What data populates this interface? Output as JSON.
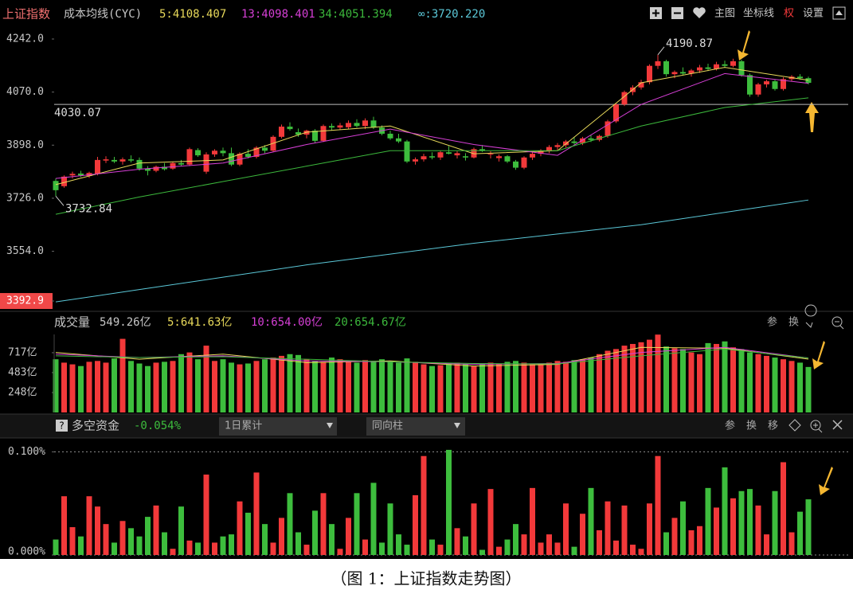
{
  "toolbar": {
    "items": [
      "主图",
      "坐标线",
      "权",
      "设置"
    ]
  },
  "chart_data": [
    {
      "type": "candlestick",
      "title": "上证指数",
      "subtitle": "成本均线(CYC)",
      "up_color": "#f2393a",
      "down_color": "#3dbd3d",
      "ylim": [
        3362,
        4291
      ],
      "yticks": [
        {
          "value": 3392.9,
          "label": "3392.9"
        },
        {
          "value": 3554,
          "label": "3554.0"
        },
        {
          "value": 3726,
          "label": "3726.0"
        },
        {
          "value": 3898,
          "label": "3898.0"
        },
        {
          "value": 4070,
          "label": "4070.0"
        },
        {
          "value": 4242,
          "label": "4242.0"
        }
      ],
      "hline": 4030.07,
      "ohlc": [
        [
          3782,
          3790,
          3732.84,
          3752
        ],
        [
          3765,
          3800,
          3760,
          3796
        ],
        [
          3800,
          3812,
          3790,
          3805
        ],
        [
          3806,
          3815,
          3795,
          3800
        ],
        [
          3798,
          3812,
          3792,
          3808
        ],
        [
          3805,
          3860,
          3800,
          3850
        ],
        [
          3848,
          3862,
          3840,
          3852
        ],
        [
          3850,
          3860,
          3840,
          3845
        ],
        [
          3845,
          3858,
          3835,
          3852
        ],
        [
          3852,
          3865,
          3842,
          3848
        ],
        [
          3850,
          3858,
          3815,
          3822
        ],
        [
          3822,
          3830,
          3800,
          3815
        ],
        [
          3815,
          3832,
          3810,
          3828
        ],
        [
          3828,
          3840,
          3816,
          3820
        ],
        [
          3822,
          3845,
          3818,
          3840
        ],
        [
          3840,
          3850,
          3830,
          3835
        ],
        [
          3835,
          3890,
          3830,
          3885
        ],
        [
          3882,
          3888,
          3860,
          3865
        ],
        [
          3812,
          3875,
          3805,
          3868
        ],
        [
          3868,
          3885,
          3860,
          3880
        ],
        [
          3880,
          3890,
          3862,
          3872
        ],
        [
          3872,
          3890,
          3830,
          3835
        ],
        [
          3835,
          3875,
          3830,
          3870
        ],
        [
          3870,
          3885,
          3855,
          3860
        ],
        [
          3860,
          3895,
          3855,
          3890
        ],
        [
          3890,
          3898,
          3872,
          3880
        ],
        [
          3880,
          3930,
          3876,
          3925
        ],
        [
          3925,
          3965,
          3920,
          3958
        ],
        [
          3958,
          3972,
          3945,
          3950
        ],
        [
          3940,
          3952,
          3925,
          3932
        ],
        [
          3932,
          3948,
          3920,
          3945
        ],
        [
          3945,
          3950,
          3905,
          3912
        ],
        [
          3912,
          3965,
          3908,
          3960
        ],
        [
          3960,
          3968,
          3945,
          3955
        ],
        [
          3955,
          3970,
          3948,
          3962
        ],
        [
          3956,
          3978,
          3950,
          3970
        ],
        [
          3970,
          3982,
          3955,
          3960
        ],
        [
          3960,
          3985,
          3950,
          3978
        ],
        [
          3978,
          3990,
          3950,
          3955
        ],
        [
          3955,
          3962,
          3930,
          3935
        ],
        [
          3935,
          3945,
          3915,
          3920
        ],
        [
          3920,
          3935,
          3905,
          3910
        ],
        [
          3910,
          3915,
          3840,
          3845
        ],
        [
          3845,
          3858,
          3835,
          3852
        ],
        [
          3852,
          3870,
          3845,
          3862
        ],
        [
          3862,
          3875,
          3852,
          3858
        ],
        [
          3858,
          3880,
          3850,
          3875
        ],
        [
          3875,
          3895,
          3868,
          3870
        ],
        [
          3865,
          3878,
          3855,
          3872
        ],
        [
          3862,
          3872,
          3848,
          3858
        ],
        [
          3858,
          3890,
          3855,
          3885
        ],
        [
          3885,
          3898,
          3876,
          3880
        ],
        [
          3868,
          3878,
          3855,
          3870
        ],
        [
          3856,
          3868,
          3845,
          3862
        ],
        [
          3862,
          3866,
          3840,
          3845
        ],
        [
          3845,
          3850,
          3818,
          3825
        ],
        [
          3825,
          3862,
          3820,
          3858
        ],
        [
          3858,
          3875,
          3850,
          3870
        ],
        [
          3870,
          3885,
          3862,
          3880
        ],
        [
          3880,
          3898,
          3872,
          3892
        ],
        [
          3892,
          3905,
          3882,
          3898
        ],
        [
          3898,
          3915,
          3890,
          3910
        ],
        [
          3910,
          3925,
          3900,
          3905
        ],
        [
          3905,
          3925,
          3898,
          3920
        ],
        [
          3920,
          3930,
          3908,
          3915
        ],
        [
          3915,
          3932,
          3910,
          3928
        ],
        [
          3928,
          3980,
          3922,
          3975
        ],
        [
          3975,
          4035,
          3970,
          4030
        ],
        [
          4030,
          4075,
          4025,
          4070
        ],
        [
          4070,
          4092,
          4060,
          4085
        ],
        [
          4085,
          4110,
          4078,
          4102
        ],
        [
          4102,
          4160,
          4095,
          4155
        ],
        [
          4155,
          4190.87,
          4145,
          4170
        ],
        [
          4170,
          4175,
          4120,
          4128
        ],
        [
          4128,
          4140,
          4115,
          4135
        ],
        [
          4135,
          4150,
          4125,
          4130
        ],
        [
          4130,
          4145,
          4120,
          4140
        ],
        [
          4140,
          4158,
          4132,
          4150
        ],
        [
          4150,
          4162,
          4138,
          4145
        ],
        [
          4145,
          4168,
          4140,
          4160
        ],
        [
          4160,
          4172,
          4148,
          4155
        ],
        [
          4155,
          4178,
          4150,
          4170
        ],
        [
          4170,
          4175,
          4120,
          4125
        ],
        [
          4125,
          4130,
          4055,
          4062
        ],
        [
          4062,
          4100,
          4055,
          4095
        ],
        [
          4095,
          4110,
          4085,
          4105
        ],
        [
          4105,
          4110,
          4075,
          4080
        ],
        [
          4080,
          4118,
          4075,
          4112
        ],
        [
          4112,
          4125,
          4105,
          4120
        ],
        [
          4120,
          4128,
          4110,
          4115
        ],
        [
          4115,
          4120,
          4095,
          4100
        ]
      ],
      "series": [
        {
          "name": "5:4108.407",
          "color": "#e8d95a",
          "x": [
            0,
            10,
            20,
            30,
            40,
            50,
            60,
            70,
            80,
            90
          ],
          "values": [
            3770,
            3840,
            3850,
            3940,
            3960,
            3870,
            3880,
            4100,
            4150,
            4108.407
          ]
        },
        {
          "name": "13:4098.401",
          "color": "#d63fd6",
          "x": [
            0,
            10,
            20,
            30,
            40,
            50,
            60,
            70,
            80,
            90
          ],
          "values": [
            3790,
            3820,
            3840,
            3900,
            3950,
            3900,
            3865,
            4030,
            4130,
            4098.401
          ]
        },
        {
          "name": "34:4051.394",
          "color": "#3cb83c",
          "x": [
            0,
            10,
            20,
            30,
            40,
            50,
            60,
            70,
            80,
            90
          ],
          "values": [
            3674,
            3730,
            3780,
            3830,
            3880,
            3880,
            3880,
            3960,
            4020,
            4051.394
          ]
        },
        {
          "name": "∞:3720.220",
          "color": "#5bc8d8",
          "x": [
            0,
            10,
            20,
            30,
            40,
            50,
            60,
            70,
            80,
            90
          ],
          "values": [
            3390,
            3430,
            3470,
            3510,
            3545,
            3580,
            3610,
            3640,
            3680,
            3720.22
          ]
        }
      ]
    },
    {
      "type": "bar",
      "title": "成交量",
      "subtitle": "549.26亿",
      "tools": [
        "参",
        "换"
      ],
      "ylim": [
        14,
        932
      ],
      "yticks": [
        {
          "value": 248,
          "label": "248亿"
        },
        {
          "value": 483,
          "label": "483亿"
        },
        {
          "value": 717,
          "label": "717亿"
        }
      ],
      "values": [
        640,
        600,
        580,
        560,
        610,
        620,
        600,
        650,
        880,
        620,
        590,
        560,
        600,
        610,
        620,
        700,
        720,
        640,
        800,
        620,
        640,
        600,
        580,
        590,
        620,
        640,
        660,
        680,
        700,
        690,
        640,
        620,
        610,
        660,
        640,
        620,
        600,
        630,
        610,
        640,
        620,
        600,
        650,
        610,
        580,
        560,
        570,
        590,
        600,
        580,
        560,
        580,
        600,
        590,
        610,
        620,
        600,
        580,
        590,
        600,
        620,
        610,
        630,
        640,
        660,
        700,
        740,
        760,
        800,
        820,
        840,
        870,
        930,
        790,
        770,
        760,
        720,
        700,
        830,
        820,
        850,
        780,
        760,
        720,
        700,
        680,
        660,
        640,
        620,
        600,
        549.26
      ],
      "series": [
        {
          "name": "5:641.63亿",
          "color": "#e8d95a",
          "x": [
            0,
            10,
            20,
            30,
            40,
            50,
            60,
            70,
            80,
            90
          ],
          "values": [
            720,
            640,
            700,
            600,
            620,
            560,
            580,
            780,
            770,
            641.63
          ]
        },
        {
          "name": "10:654.00亿",
          "color": "#d63fd6",
          "x": [
            0,
            10,
            20,
            30,
            40,
            50,
            60,
            70,
            80,
            90
          ],
          "values": [
            700,
            660,
            680,
            620,
            610,
            580,
            590,
            720,
            780,
            654
          ]
        },
        {
          "name": "20:654.67亿",
          "color": "#3cb83c",
          "x": [
            0,
            10,
            20,
            30,
            40,
            50,
            60,
            70,
            80,
            90
          ],
          "values": [
            680,
            660,
            670,
            640,
            610,
            590,
            585,
            680,
            760,
            654.67
          ]
        }
      ]
    },
    {
      "type": "bar",
      "title": "多空资金",
      "subtitle": "-0.054%",
      "controls": [
        "1日累计",
        "同向柱"
      ],
      "tools": [
        "参",
        "换",
        "移"
      ],
      "ylim": [
        0,
        0.112
      ],
      "grid": true,
      "yticks": [
        {
          "value": 0,
          "label": "0.000%"
        },
        {
          "value": 0.1,
          "label": "0.100%"
        }
      ],
      "values": [
        0.015,
        0.057,
        0.027,
        0.018,
        0.057,
        0.047,
        0.03,
        0.012,
        0.033,
        0.026,
        0.018,
        0.037,
        0.048,
        0.022,
        0.006,
        0.047,
        0.014,
        0.012,
        0.078,
        0.012,
        0.018,
        0.02,
        0.052,
        0.041,
        0.08,
        0.03,
        0.012,
        0.036,
        0.06,
        0.022,
        0.01,
        0.043,
        0.06,
        0.03,
        0.006,
        0.036,
        0.06,
        0.015,
        0.07,
        0.012,
        0.05,
        0.02,
        0.01,
        0.058,
        0.096,
        0.015,
        0.01,
        0.102,
        0.026,
        0.018,
        0.05,
        0.005,
        0.064,
        0.008,
        0.015,
        0.03,
        0.02,
        0.065,
        0.012,
        0.02,
        0.012,
        0.05,
        0.008,
        0.04,
        0.065,
        0.024,
        0.052,
        0.014,
        0.048,
        0.01,
        0.006,
        0.05,
        0.096,
        0.022,
        0.036,
        0.052,
        0.024,
        0.028,
        0.065,
        0.046,
        0.085,
        0.055,
        0.062,
        0.064,
        0.048,
        0.02,
        0.062,
        0.09,
        0.022,
        0.042,
        0.054
      ]
    }
  ],
  "caption": "（图 1：上证指数走势图）"
}
